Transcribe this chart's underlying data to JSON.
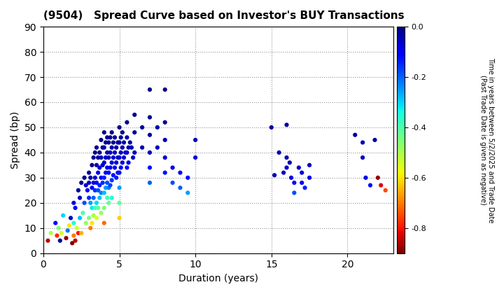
{
  "title": "(9504)   Spread Curve based on Investor's BUY Transactions",
  "xlabel": "Duration (years)",
  "ylabel": "Spread (bp)",
  "xlim": [
    0,
    23
  ],
  "ylim": [
    0,
    90
  ],
  "xticks": [
    0,
    5,
    10,
    15,
    20
  ],
  "yticks": [
    0,
    10,
    20,
    30,
    40,
    50,
    60,
    70,
    80,
    90
  ],
  "colorbar_label": "Time in years between 5/2/2025 and Trade Date\n(Past Trade Date is given as negative)",
  "cmap": "jet_r",
  "vmin": -0.9,
  "vmax": 0.0,
  "colorbar_ticks": [
    0.0,
    -0.2,
    -0.4,
    -0.6,
    -0.8
  ],
  "points": [
    [
      0.3,
      5,
      -0.85
    ],
    [
      0.5,
      8,
      -0.5
    ],
    [
      0.8,
      12,
      -0.1
    ],
    [
      0.9,
      7,
      -0.78
    ],
    [
      1.0,
      10,
      -0.45
    ],
    [
      1.1,
      5,
      -0.02
    ],
    [
      1.2,
      8,
      -0.55
    ],
    [
      1.3,
      15,
      -0.3
    ],
    [
      1.5,
      6,
      -0.88
    ],
    [
      1.6,
      9,
      -0.22
    ],
    [
      1.7,
      11,
      -0.6
    ],
    [
      1.8,
      14,
      -0.05
    ],
    [
      1.9,
      4,
      -0.9
    ],
    [
      2.0,
      20,
      -0.08
    ],
    [
      2.0,
      7,
      -0.7
    ],
    [
      2.0,
      12,
      -0.35
    ],
    [
      2.1,
      5,
      -0.85
    ],
    [
      2.1,
      18,
      -0.12
    ],
    [
      2.2,
      10,
      -0.55
    ],
    [
      2.3,
      25,
      -0.03
    ],
    [
      2.3,
      8,
      -0.8
    ],
    [
      2.4,
      14,
      -0.28
    ],
    [
      2.4,
      22,
      -0.05
    ],
    [
      2.5,
      28,
      -0.02
    ],
    [
      2.5,
      8,
      -0.65
    ],
    [
      2.6,
      16,
      -0.4
    ],
    [
      2.7,
      30,
      -0.01
    ],
    [
      2.7,
      20,
      -0.18
    ],
    [
      2.8,
      27,
      -0.06
    ],
    [
      2.8,
      12,
      -0.48
    ],
    [
      2.9,
      25,
      -0.1
    ],
    [
      3.0,
      32,
      -0.02
    ],
    [
      3.0,
      22,
      -0.15
    ],
    [
      3.0,
      14,
      -0.45
    ],
    [
      3.0,
      28,
      -0.05
    ],
    [
      3.1,
      30,
      -0.03
    ],
    [
      3.1,
      20,
      -0.25
    ],
    [
      3.1,
      10,
      -0.7
    ],
    [
      3.2,
      35,
      -0.01
    ],
    [
      3.2,
      26,
      -0.1
    ],
    [
      3.2,
      18,
      -0.32
    ],
    [
      3.2,
      12,
      -0.6
    ],
    [
      3.3,
      38,
      -0.02
    ],
    [
      3.3,
      28,
      -0.08
    ],
    [
      3.3,
      22,
      -0.2
    ],
    [
      3.3,
      15,
      -0.5
    ],
    [
      3.4,
      40,
      -0.01
    ],
    [
      3.4,
      30,
      -0.06
    ],
    [
      3.4,
      25,
      -0.15
    ],
    [
      3.4,
      18,
      -0.38
    ],
    [
      3.5,
      42,
      -0.02
    ],
    [
      3.5,
      35,
      -0.04
    ],
    [
      3.5,
      28,
      -0.12
    ],
    [
      3.5,
      20,
      -0.3
    ],
    [
      3.5,
      14,
      -0.55
    ],
    [
      3.6,
      38,
      -0.03
    ],
    [
      3.6,
      32,
      -0.08
    ],
    [
      3.6,
      25,
      -0.18
    ],
    [
      3.6,
      18,
      -0.42
    ],
    [
      3.7,
      40,
      -0.02
    ],
    [
      3.7,
      34,
      -0.06
    ],
    [
      3.7,
      27,
      -0.14
    ],
    [
      3.7,
      22,
      -0.28
    ],
    [
      3.8,
      45,
      -0.01
    ],
    [
      3.8,
      38,
      -0.04
    ],
    [
      3.8,
      30,
      -0.1
    ],
    [
      3.8,
      24,
      -0.22
    ],
    [
      3.8,
      16,
      -0.48
    ],
    [
      3.9,
      42,
      -0.02
    ],
    [
      3.9,
      35,
      -0.06
    ],
    [
      3.9,
      28,
      -0.15
    ],
    [
      4.0,
      48,
      -0.01
    ],
    [
      4.0,
      42,
      -0.03
    ],
    [
      4.0,
      36,
      -0.07
    ],
    [
      4.0,
      30,
      -0.14
    ],
    [
      4.0,
      24,
      -0.28
    ],
    [
      4.0,
      18,
      -0.45
    ],
    [
      4.0,
      12,
      -0.72
    ],
    [
      4.1,
      44,
      -0.02
    ],
    [
      4.1,
      38,
      -0.05
    ],
    [
      4.1,
      32,
      -0.12
    ],
    [
      4.1,
      26,
      -0.25
    ],
    [
      4.2,
      46,
      -0.02
    ],
    [
      4.2,
      40,
      -0.04
    ],
    [
      4.2,
      34,
      -0.09
    ],
    [
      4.2,
      28,
      -0.18
    ],
    [
      4.2,
      22,
      -0.38
    ],
    [
      4.3,
      44,
      -0.02
    ],
    [
      4.3,
      38,
      -0.05
    ],
    [
      4.3,
      32,
      -0.11
    ],
    [
      4.3,
      26,
      -0.22
    ],
    [
      4.3,
      20,
      -0.42
    ],
    [
      4.4,
      46,
      -0.01
    ],
    [
      4.4,
      40,
      -0.04
    ],
    [
      4.4,
      34,
      -0.08
    ],
    [
      4.4,
      27,
      -0.17
    ],
    [
      4.5,
      48,
      -0.02
    ],
    [
      4.5,
      42,
      -0.04
    ],
    [
      4.5,
      36,
      -0.08
    ],
    [
      4.5,
      29,
      -0.16
    ],
    [
      4.5,
      22,
      -0.35
    ],
    [
      4.6,
      44,
      -0.02
    ],
    [
      4.6,
      38,
      -0.06
    ],
    [
      4.6,
      31,
      -0.13
    ],
    [
      4.7,
      46,
      -0.02
    ],
    [
      4.7,
      40,
      -0.05
    ],
    [
      4.7,
      34,
      -0.1
    ],
    [
      4.8,
      42,
      -0.03
    ],
    [
      4.8,
      36,
      -0.07
    ],
    [
      4.8,
      30,
      -0.14
    ],
    [
      4.9,
      44,
      -0.02
    ],
    [
      4.9,
      38,
      -0.05
    ],
    [
      4.9,
      32,
      -0.12
    ],
    [
      5.0,
      50,
      -0.01
    ],
    [
      5.0,
      44,
      -0.03
    ],
    [
      5.0,
      38,
      -0.07
    ],
    [
      5.0,
      32,
      -0.13
    ],
    [
      5.0,
      26,
      -0.25
    ],
    [
      5.0,
      20,
      -0.42
    ],
    [
      5.0,
      14,
      -0.62
    ],
    [
      5.1,
      46,
      -0.02
    ],
    [
      5.1,
      40,
      -0.05
    ],
    [
      5.1,
      34,
      -0.1
    ],
    [
      5.2,
      48,
      -0.02
    ],
    [
      5.2,
      42,
      -0.04
    ],
    [
      5.2,
      36,
      -0.08
    ],
    [
      5.3,
      44,
      -0.03
    ],
    [
      5.3,
      38,
      -0.06
    ],
    [
      5.4,
      40,
      -0.05
    ],
    [
      5.5,
      52,
      -0.01
    ],
    [
      5.5,
      46,
      -0.03
    ],
    [
      5.5,
      40,
      -0.06
    ],
    [
      5.5,
      34,
      -0.12
    ],
    [
      5.6,
      42,
      -0.04
    ],
    [
      5.6,
      36,
      -0.08
    ],
    [
      5.7,
      44,
      -0.03
    ],
    [
      5.8,
      42,
      -0.04
    ],
    [
      5.9,
      38,
      -0.06
    ],
    [
      6.0,
      55,
      -0.01
    ],
    [
      6.0,
      48,
      -0.02
    ],
    [
      6.0,
      40,
      -0.05
    ],
    [
      6.5,
      50,
      -0.02
    ],
    [
      6.5,
      42,
      -0.04
    ],
    [
      7.0,
      65,
      -0.01
    ],
    [
      7.0,
      54,
      -0.02
    ],
    [
      7.0,
      47,
      -0.03
    ],
    [
      7.0,
      40,
      -0.06
    ],
    [
      7.0,
      34,
      -0.12
    ],
    [
      7.0,
      28,
      -0.2
    ],
    [
      7.5,
      50,
      -0.03
    ],
    [
      7.5,
      42,
      -0.05
    ],
    [
      8.0,
      65,
      -0.01
    ],
    [
      8.0,
      52,
      -0.02
    ],
    [
      8.0,
      45,
      -0.04
    ],
    [
      8.0,
      38,
      -0.07
    ],
    [
      8.0,
      32,
      -0.13
    ],
    [
      8.5,
      34,
      -0.08
    ],
    [
      8.5,
      28,
      -0.18
    ],
    [
      9.0,
      32,
      -0.1
    ],
    [
      9.0,
      26,
      -0.2
    ],
    [
      9.5,
      30,
      -0.12
    ],
    [
      9.5,
      24,
      -0.25
    ],
    [
      10.0,
      45,
      -0.04
    ],
    [
      10.0,
      38,
      -0.07
    ],
    [
      15.0,
      50,
      -0.03
    ],
    [
      15.2,
      31,
      -0.05
    ],
    [
      15.5,
      40,
      -0.04
    ],
    [
      15.8,
      32,
      -0.06
    ],
    [
      16.0,
      51,
      -0.02
    ],
    [
      16.0,
      38,
      -0.05
    ],
    [
      16.0,
      34,
      -0.07
    ],
    [
      16.2,
      36,
      -0.04
    ],
    [
      16.3,
      30,
      -0.08
    ],
    [
      16.5,
      28,
      -0.12
    ],
    [
      16.5,
      24,
      -0.18
    ],
    [
      16.8,
      34,
      -0.06
    ],
    [
      17.0,
      32,
      -0.07
    ],
    [
      17.0,
      28,
      -0.1
    ],
    [
      17.2,
      26,
      -0.14
    ],
    [
      17.5,
      35,
      -0.05
    ],
    [
      17.5,
      30,
      -0.08
    ],
    [
      20.5,
      47,
      -0.03
    ],
    [
      21.0,
      44,
      -0.04
    ],
    [
      21.0,
      38,
      -0.05
    ],
    [
      21.2,
      30,
      -0.08
    ],
    [
      21.5,
      27,
      -0.12
    ],
    [
      21.8,
      45,
      -0.03
    ],
    [
      22.0,
      30,
      -0.88
    ],
    [
      22.2,
      27,
      -0.82
    ],
    [
      22.5,
      25,
      -0.75
    ]
  ]
}
